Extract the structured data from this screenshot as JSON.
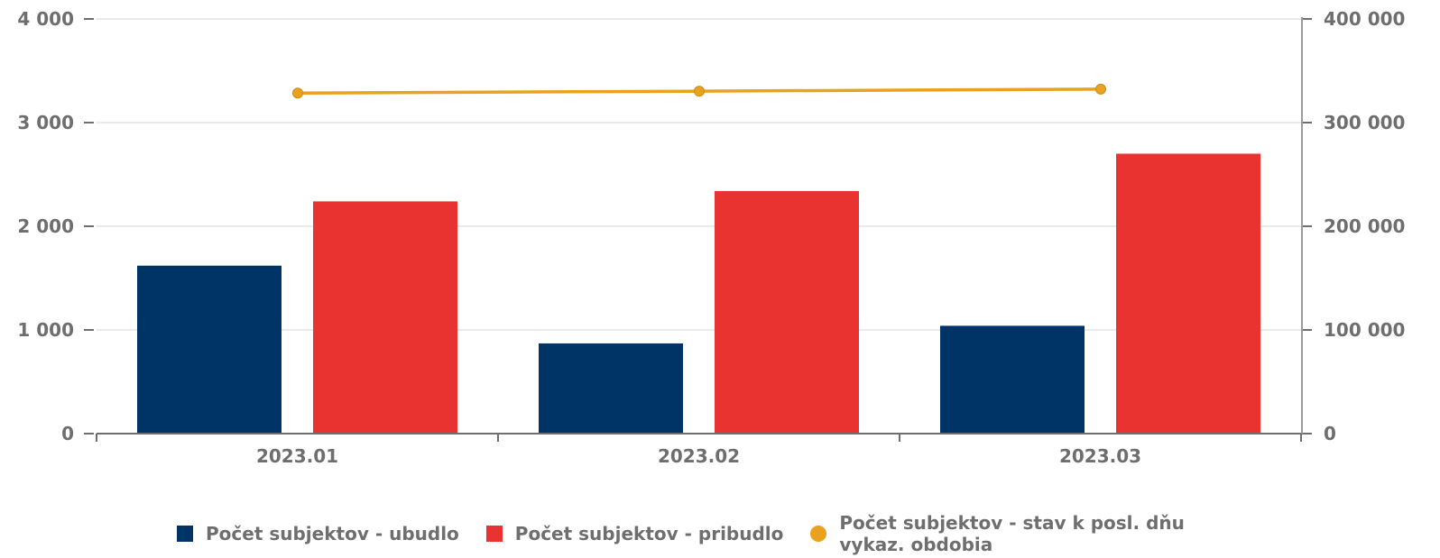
{
  "chart_data": {
    "type": "bar",
    "categories": [
      "2023.01",
      "2023.02",
      "2023.03"
    ],
    "series": [
      {
        "name": "Počet subjektov - ubudlo",
        "type": "bar",
        "axis": "left",
        "color": "#003366",
        "values": [
          1620,
          870,
          1040
        ]
      },
      {
        "name": "Počet subjektov - pribudlo",
        "type": "bar",
        "axis": "left",
        "color": "#e83331",
        "values": [
          2240,
          2340,
          2700
        ]
      },
      {
        "name": "Počet subjektov - stav k posl. dňu vykaz. obdobia",
        "type": "line",
        "axis": "right",
        "color": "#e8a21f",
        "values": [
          328500,
          330300,
          332300
        ]
      }
    ],
    "ylim_left": [
      0,
      4000
    ],
    "ylim_right": [
      0,
      400000
    ],
    "yticks_left": [
      "0",
      "1 000",
      "2 000",
      "3 000",
      "4 000"
    ],
    "yticks_right": [
      "0",
      "100 000",
      "200 000",
      "300 000",
      "400 000"
    ],
    "grid": true,
    "legend_position": "bottom"
  }
}
